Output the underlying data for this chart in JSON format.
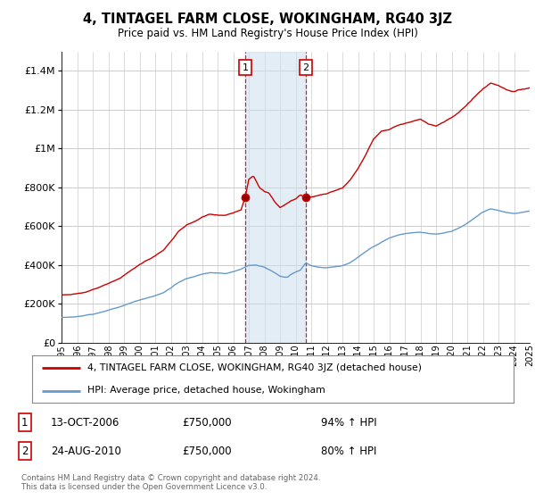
{
  "title": "4, TINTAGEL FARM CLOSE, WOKINGHAM, RG40 3JZ",
  "subtitle": "Price paid vs. HM Land Registry's House Price Index (HPI)",
  "background_color": "#ffffff",
  "grid_color": "#cccccc",
  "ylim": [
    0,
    1500000
  ],
  "yticks": [
    0,
    200000,
    400000,
    600000,
    800000,
    1000000,
    1200000,
    1400000
  ],
  "ytick_labels": [
    "£0",
    "£200K",
    "£400K",
    "£600K",
    "£800K",
    "£1M",
    "£1.2M",
    "£1.4M"
  ],
  "red_line_color": "#cc0000",
  "blue_line_color": "#6699cc",
  "sale1_date": 2006.79,
  "sale1_price": 750000,
  "sale2_date": 2010.65,
  "sale2_price": 750000,
  "legend_red": "4, TINTAGEL FARM CLOSE, WOKINGHAM, RG40 3JZ (detached house)",
  "legend_blue": "HPI: Average price, detached house, Wokingham",
  "footer": "Contains HM Land Registry data © Crown copyright and database right 2024.\nThis data is licensed under the Open Government Licence v3.0.",
  "xmin": 1995,
  "xmax": 2025
}
